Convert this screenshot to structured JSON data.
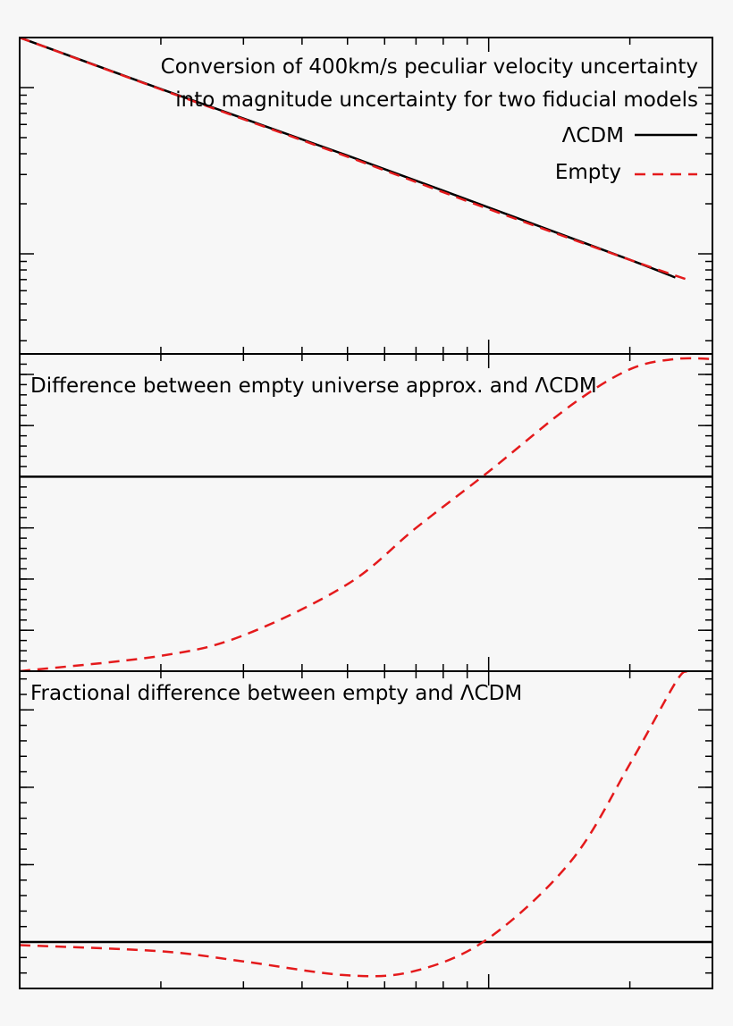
{
  "figure": {
    "background": "#f7f7f7",
    "line_color": "#000000",
    "dashed_color": "#e41a1c"
  },
  "chart_data": [
    {
      "type": "line",
      "panel": "top",
      "title_lines": [
        "Conversion of 400km/s peculiar velocity uncertainty",
        "into magnitude uncertainty for two fiducial models"
      ],
      "xscale": "log",
      "yscale": "log",
      "xlim": [
        0.01,
        0.3
      ],
      "ylim": [
        0.025,
        2.0
      ],
      "ticklabels_visible": false,
      "legend": "top-right",
      "series": [
        {
          "name": "ΛCDM",
          "style": "solid",
          "color": "#000000",
          "x": [
            0.01,
            0.02,
            0.05,
            0.1,
            0.2,
            0.25
          ],
          "y": [
            2.0,
            0.98,
            0.39,
            0.19,
            0.092,
            0.072
          ]
        },
        {
          "name": "Empty",
          "style": "dashed",
          "color": "#e41a1c",
          "x": [
            0.01,
            0.02,
            0.05,
            0.1,
            0.2,
            0.265
          ],
          "y": [
            2.0,
            0.975,
            0.384,
            0.186,
            0.092,
            0.07
          ]
        }
      ]
    },
    {
      "type": "line",
      "panel": "middle",
      "title": "Difference between empty universe approx. and ΛCDM",
      "xscale": "log",
      "xlim": [
        0.01,
        0.3
      ],
      "ylim": [
        -0.0038,
        0.0024
      ],
      "ticklabels_visible": false,
      "reference_line": 0,
      "series": [
        {
          "name": "",
          "style": "dashed",
          "color": "#e41a1c",
          "x": [
            0.01,
            0.02,
            0.03,
            0.05,
            0.07,
            0.1,
            0.15,
            0.2,
            0.25,
            0.3
          ],
          "y": [
            -0.0038,
            -0.0035,
            -0.0031,
            -0.0021,
            -0.001,
            0.0001,
            0.0014,
            0.0021,
            0.0023,
            0.0023
          ]
        }
      ]
    },
    {
      "type": "line",
      "panel": "bottom",
      "title": "Fractional difference between empty and ΛCDM",
      "xscale": "log",
      "xlim": [
        0.01,
        0.3
      ],
      "ylim": [
        -0.006,
        0.035
      ],
      "ticklabels_visible": false,
      "reference_line": 0,
      "series": [
        {
          "name": "",
          "style": "dashed",
          "color": "#e41a1c",
          "x": [
            0.01,
            0.02,
            0.03,
            0.05,
            0.07,
            0.1,
            0.15,
            0.2,
            0.25,
            0.265
          ],
          "y": [
            -0.0004,
            -0.0012,
            -0.0025,
            -0.0043,
            -0.0037,
            0.0005,
            0.0105,
            0.023,
            0.0335,
            0.035
          ]
        }
      ]
    }
  ]
}
